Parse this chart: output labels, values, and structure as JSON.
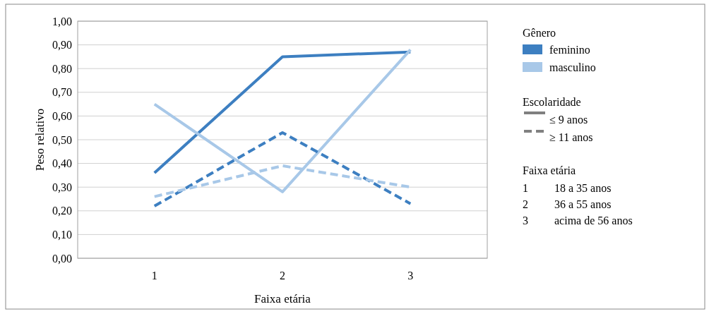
{
  "chart_data": {
    "type": "line",
    "xlabel": "Faixa etária",
    "ylabel": "Peso relativo",
    "categories": [
      "1",
      "2",
      "3"
    ],
    "ylim": [
      0,
      1
    ],
    "yticks": [
      {
        "value": 0,
        "label": "0,00"
      },
      {
        "value": 0.1,
        "label": "0,10"
      },
      {
        "value": 0.2,
        "label": "0,20"
      },
      {
        "value": 0.3,
        "label": "0,30"
      },
      {
        "value": 0.4,
        "label": "0,40"
      },
      {
        "value": 0.5,
        "label": "0,50"
      },
      {
        "value": 0.6,
        "label": "0,60"
      },
      {
        "value": 0.7,
        "label": "0,70"
      },
      {
        "value": 0.8,
        "label": "0,80"
      },
      {
        "value": 0.9,
        "label": "0,90"
      },
      {
        "value": 1,
        "label": "1,00"
      }
    ],
    "grid": "y",
    "marker": "none",
    "series": [
      {
        "color": "#3d7fc1",
        "line_style": "solid",
        "values": [
          0.36,
          0.85,
          0.87
        ]
      },
      {
        "color": "#a8c8e8",
        "line_style": "solid",
        "values": [
          0.65,
          0.28,
          0.88
        ]
      },
      {
        "color": "#3d7fc1",
        "line_style": "dashed",
        "values": [
          0.22,
          0.53,
          0.23
        ]
      },
      {
        "color": "#a8c8e8",
        "line_style": "dashed",
        "values": [
          0.26,
          0.39,
          0.3
        ]
      }
    ],
    "annotations": [
      "Gênero",
      "feminino",
      "masculino",
      "Escolaridade",
      "≤ 9 anos",
      "≥ 11 anos",
      "Faixa etária",
      "1",
      "18 a 35 anos",
      "2",
      "36 a 55 anos",
      "3",
      "acima de 56 anos"
    ]
  }
}
